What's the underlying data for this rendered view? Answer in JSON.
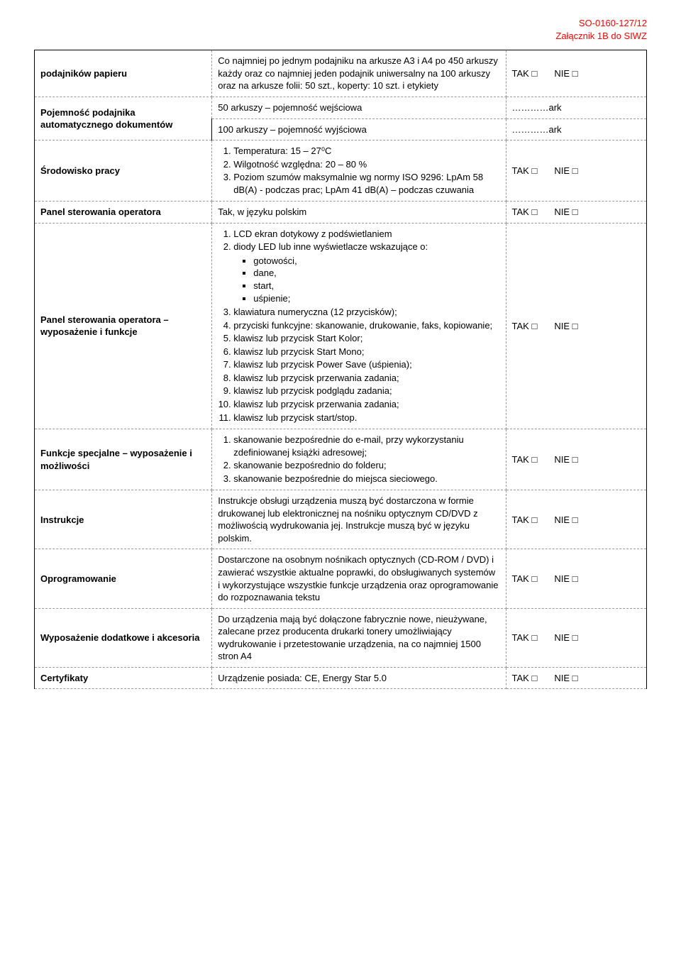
{
  "header": {
    "doc_number": "SO-0160-127/12",
    "attachment": "Załącznik 1B do SIWZ"
  },
  "checkbox_glyph": "□",
  "labels": {
    "tak": "TAK",
    "nie": "NIE"
  },
  "rows": {
    "r1": {
      "label": "podajników papieru",
      "desc": "Co najmniej po jednym podajniku na arkusze A3 i A4 po 450 arkuszy każdy oraz co najmniej jeden podajnik uniwersalny na 100 arkuszy oraz na arkusze folii: 50 szt., koperty: 10 szt. i etykiety"
    },
    "r2": {
      "label": "Pojemność podajnika automatycznego dokumentów",
      "desc_a": "50 arkuszy – pojemność wejściowa",
      "val_a": "…………ark",
      "desc_b": "100 arkuszy – pojemność wyjściowa",
      "val_b": "…………ark"
    },
    "r3": {
      "label": "Środowisko pracy",
      "items": {
        "i1": "Temperatura: 15 – 27⁰C",
        "i2": "Wilgotność względna: 20 – 80 %",
        "i3": "Poziom szumów maksymalnie wg normy ISO 9296: LpAm 58 dB(A) - podczas prac; LpAm 41 dB(A) – podczas czuwania"
      }
    },
    "r4": {
      "label": "Panel sterowania operatora",
      "desc": "Tak, w języku polskim"
    },
    "r5": {
      "label": "Panel sterowania operatora – wyposażenie i funkcje",
      "items": {
        "i1": "LCD ekran dotykowy z podświetlaniem",
        "i2_head": "diody LED lub inne wyświetlacze wskazujące o:",
        "i2_sub": {
          "s1": "gotowości,",
          "s2": "dane,",
          "s3": "start,",
          "s4": "uśpienie;"
        },
        "i3": "klawiatura numeryczna (12 przycisków);",
        "i4": "przyciski funkcyjne: skanowanie, drukowanie, faks, kopiowanie;",
        "i5": "klawisz lub przycisk Start Kolor;",
        "i6": "klawisz lub przycisk Start Mono;",
        "i7": "klawisz lub przycisk Power Save (uśpienia);",
        "i8": "klawisz lub przycisk przerwania zadania;",
        "i9": "klawisz lub przycisk podglądu zadania;",
        "i10": "klawisz lub przycisk przerwania zadania;",
        "i11": "klawisz lub przycisk start/stop."
      }
    },
    "r6": {
      "label": "Funkcje specjalne – wyposażenie i możliwości",
      "items": {
        "i1": "skanowanie bezpośrednie do e-mail, przy wykorzystaniu zdefiniowanej książki adresowej;",
        "i2": "skanowanie bezpośrednio do folderu;",
        "i3": "skanowanie bezpośrednie do miejsca sieciowego."
      }
    },
    "r7": {
      "label": "Instrukcje",
      "desc": "Instrukcje obsługi urządzenia muszą być dostarczona w formie drukowanej lub elektronicznej na nośniku optycznym CD/DVD z możliwością wydrukowania jej. Instrukcje muszą być w języku polskim."
    },
    "r8": {
      "label": "Oprogramowanie",
      "desc": "Dostarczone na osobnym nośnikach optycznych (CD-ROM / DVD) i zawierać wszystkie aktualne poprawki, do obsługiwanych systemów i wykorzystujące wszystkie funkcje urządzenia oraz oprogramowanie do rozpoznawania tekstu"
    },
    "r9": {
      "label": "Wyposażenie dodatkowe i akcesoria",
      "desc": "Do urządzenia mają być dołączone fabrycznie nowe, nieużywane, zalecane przez producenta drukarki tonery umożliwiający wydrukowanie i przetestowanie urządzenia, na co najmniej 1500 stron A4"
    },
    "r10": {
      "label": "Certyfikaty",
      "desc": "Urządzenie posiada: CE, Energy Star 5.0"
    }
  }
}
